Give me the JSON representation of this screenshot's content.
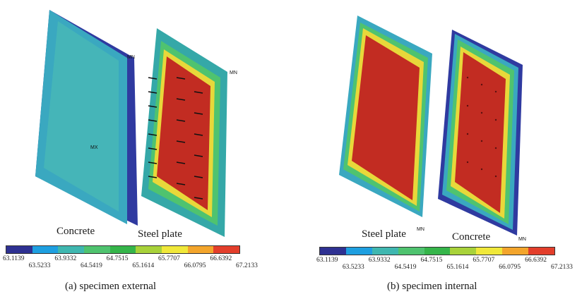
{
  "figure": {
    "panel_a": {
      "caption": "(a) specimen external",
      "left_part_label": "Concrete",
      "right_part_label": "Steel plate",
      "markers": {
        "mn": "MN",
        "mx": "MX"
      }
    },
    "panel_b": {
      "caption": "(b) specimen internal",
      "left_part_label": "Steel plate",
      "right_part_label": "Concrete",
      "markers": {
        "mn": "MN",
        "mn2": "MN"
      }
    },
    "legend": {
      "values": [
        "63.1139",
        "63.5233",
        "63.9332",
        "64.5419",
        "64.7515",
        "65.1614",
        "65.7707",
        "66.0795",
        "66.6392",
        "67.2133"
      ],
      "colors": [
        "#2e3192",
        "#1e9fe0",
        "#3fb7b0",
        "#4fc36f",
        "#35b54a",
        "#a8d23a",
        "#f0e83a",
        "#f3a52c",
        "#e33e2b"
      ]
    }
  }
}
